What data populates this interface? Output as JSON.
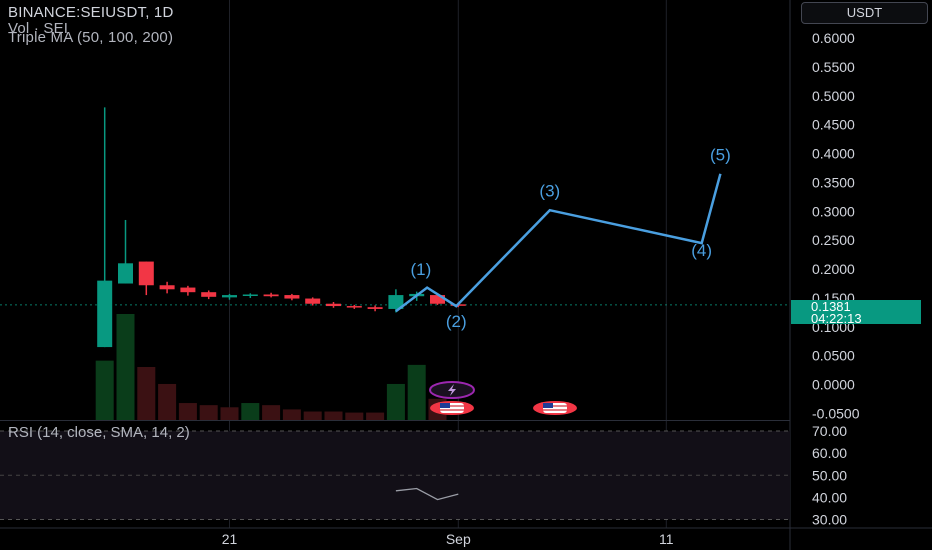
{
  "header": {
    "symbol_line": "BINANCE:SEIUSDT, 1D",
    "volume_line": "Vol · SEI",
    "ma_line": "Triple MA (50, 100, 200)",
    "unit": "USDT"
  },
  "price_tag": {
    "price": "0.1381",
    "countdown": "04:22:13"
  },
  "rsi_legend": "RSI (14, close, SMA, 14, 2)",
  "colors": {
    "up": "#089981",
    "down": "#f23645",
    "wave": "#4a9fe0",
    "background": "#000000"
  },
  "chart_data": {
    "type": "candlestick",
    "price_axis": {
      "ticks": [
        "0.6000",
        "0.5500",
        "0.5000",
        "0.4500",
        "0.4000",
        "0.3500",
        "0.3000",
        "0.2500",
        "0.2000",
        "0.1500",
        "0.1000",
        "0.0500",
        "0.0000",
        "-0.0500"
      ],
      "range": [
        -0.05,
        0.6
      ]
    },
    "rsi_axis": {
      "ticks": [
        "70.00",
        "60.00",
        "50.00",
        "40.00",
        "30.00"
      ],
      "range": [
        30,
        70
      ]
    },
    "time_axis": {
      "ticks": [
        {
          "label": "21",
          "day": 21
        },
        {
          "label": "Sep",
          "day": 32
        },
        {
          "label": "11",
          "day": 42
        }
      ]
    },
    "candles": [
      {
        "day": 15,
        "open": 0.065,
        "high": 0.48,
        "low": 0.065,
        "close": 0.18
      },
      {
        "day": 16,
        "open": 0.175,
        "high": 0.285,
        "low": 0.175,
        "close": 0.21
      },
      {
        "day": 17,
        "open": 0.213,
        "high": 0.213,
        "low": 0.155,
        "close": 0.172
      },
      {
        "day": 18,
        "open": 0.172,
        "high": 0.178,
        "low": 0.158,
        "close": 0.165
      },
      {
        "day": 19,
        "open": 0.168,
        "high": 0.171,
        "low": 0.154,
        "close": 0.16
      },
      {
        "day": 20,
        "open": 0.16,
        "high": 0.163,
        "low": 0.148,
        "close": 0.152
      },
      {
        "day": 21,
        "open": 0.151,
        "high": 0.157,
        "low": 0.147,
        "close": 0.155
      },
      {
        "day": 22,
        "open": 0.154,
        "high": 0.158,
        "low": 0.15,
        "close": 0.156
      },
      {
        "day": 23,
        "open": 0.156,
        "high": 0.159,
        "low": 0.151,
        "close": 0.153
      },
      {
        "day": 24,
        "open": 0.155,
        "high": 0.157,
        "low": 0.146,
        "close": 0.149
      },
      {
        "day": 25,
        "open": 0.149,
        "high": 0.151,
        "low": 0.137,
        "close": 0.14
      },
      {
        "day": 26,
        "open": 0.14,
        "high": 0.143,
        "low": 0.133,
        "close": 0.136
      },
      {
        "day": 27,
        "open": 0.136,
        "high": 0.138,
        "low": 0.131,
        "close": 0.134
      },
      {
        "day": 28,
        "open": 0.134,
        "high": 0.137,
        "low": 0.127,
        "close": 0.131
      },
      {
        "day": 29,
        "open": 0.131,
        "high": 0.165,
        "low": 0.125,
        "close": 0.155
      },
      {
        "day": 30,
        "open": 0.153,
        "high": 0.161,
        "low": 0.145,
        "close": 0.157
      },
      {
        "day": 31,
        "open": 0.155,
        "high": 0.158,
        "low": 0.138,
        "close": 0.14
      },
      {
        "day": 32,
        "open": 0.139,
        "high": 0.142,
        "low": 0.134,
        "close": 0.1381
      }
    ],
    "volume": [
      {
        "day": 15,
        "value": 0.28,
        "up": true
      },
      {
        "day": 16,
        "value": 0.5,
        "up": true
      },
      {
        "day": 17,
        "value": 0.25,
        "up": false
      },
      {
        "day": 18,
        "value": 0.17,
        "up": false
      },
      {
        "day": 19,
        "value": 0.08,
        "up": false
      },
      {
        "day": 20,
        "value": 0.07,
        "up": false
      },
      {
        "day": 21,
        "value": 0.06,
        "up": false
      },
      {
        "day": 22,
        "value": 0.08,
        "up": true
      },
      {
        "day": 23,
        "value": 0.07,
        "up": false
      },
      {
        "day": 24,
        "value": 0.05,
        "up": false
      },
      {
        "day": 25,
        "value": 0.04,
        "up": false
      },
      {
        "day": 26,
        "value": 0.04,
        "up": false
      },
      {
        "day": 27,
        "value": 0.035,
        "up": false
      },
      {
        "day": 28,
        "value": 0.035,
        "up": false
      },
      {
        "day": 29,
        "value": 0.17,
        "up": true
      },
      {
        "day": 30,
        "value": 0.26,
        "up": true
      },
      {
        "day": 31,
        "value": 0.1,
        "up": false
      }
    ],
    "rsi": [
      {
        "day": 29,
        "value": 43
      },
      {
        "day": 30,
        "value": 44
      },
      {
        "day": 31,
        "value": 39
      },
      {
        "day": 32,
        "value": 41.5
      }
    ],
    "wave_path": [
      {
        "day": 29,
        "price": 0.127
      },
      {
        "day": 30.5,
        "price": 0.168
      },
      {
        "day": 31.9,
        "price": 0.136
      },
      {
        "day": 36.4,
        "price": 0.302
      },
      {
        "day": 43.7,
        "price": 0.245
      },
      {
        "day": 44.6,
        "price": 0.365
      }
    ],
    "wave_labels": [
      {
        "text": "(1)",
        "day": 30.2,
        "price": 0.19
      },
      {
        "text": "(2)",
        "day": 31.9,
        "price": 0.1
      },
      {
        "text": "(3)",
        "day": 36.4,
        "price": 0.326
      },
      {
        "text": "(4)",
        "day": 43.7,
        "price": 0.223
      },
      {
        "text": "(5)",
        "day": 44.6,
        "price": 0.388
      }
    ]
  }
}
